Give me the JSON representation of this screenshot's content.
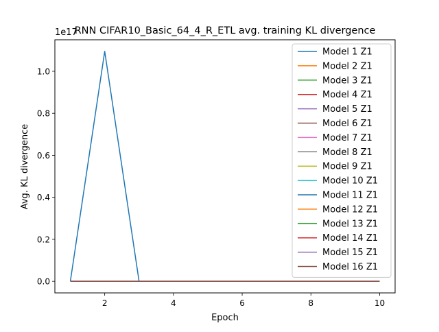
{
  "chart_data": {
    "type": "line",
    "title": "RNN CIFAR10_Basic_64_4_R_ETL avg. training KL divergence",
    "xlabel": "Epoch",
    "ylabel": "Avg. KL divergence",
    "y_offset_label": "1e17",
    "xlim": [
      0.55,
      10.45
    ],
    "ylim": [
      -0.055,
      1.15
    ],
    "y_scale_exponent": 17,
    "x_ticks": [
      2,
      4,
      6,
      8,
      10
    ],
    "x_tick_labels": [
      "2",
      "4",
      "6",
      "8",
      "10"
    ],
    "y_ticks": [
      0.0,
      0.2,
      0.4,
      0.6,
      0.8,
      1.0
    ],
    "y_tick_labels": [
      "0.0",
      "0.2",
      "0.4",
      "0.6",
      "0.8",
      "1.0"
    ],
    "grid": false,
    "legend_position": "top-right",
    "x": [
      1,
      2,
      3,
      4,
      5,
      6,
      7,
      8,
      9,
      10
    ],
    "series": [
      {
        "name": "Model 1 Z1",
        "color": "#1f77b4",
        "values": [
          0,
          1.095,
          0,
          0,
          0,
          0,
          0,
          0,
          0,
          0
        ]
      },
      {
        "name": "Model 2 Z1",
        "color": "#ff7f0e",
        "values": [
          0,
          0,
          0,
          0,
          0,
          0,
          0,
          0,
          0,
          0
        ]
      },
      {
        "name": "Model 3 Z1",
        "color": "#2ca02c",
        "values": [
          0,
          0,
          0,
          0,
          0,
          0,
          0,
          0,
          0,
          0
        ]
      },
      {
        "name": "Model 4 Z1",
        "color": "#d62728",
        "values": [
          0,
          0,
          0,
          0,
          0,
          0,
          0,
          0,
          0,
          0
        ]
      },
      {
        "name": "Model 5 Z1",
        "color": "#9467bd",
        "values": [
          0,
          0,
          0,
          0,
          0,
          0,
          0,
          0,
          0,
          0
        ]
      },
      {
        "name": "Model 6 Z1",
        "color": "#8c564b",
        "values": [
          0,
          0,
          0,
          0,
          0,
          0,
          0,
          0,
          0,
          0
        ]
      },
      {
        "name": "Model 7 Z1",
        "color": "#e377c2",
        "values": [
          0,
          0,
          0,
          0,
          0,
          0,
          0,
          0,
          0,
          0
        ]
      },
      {
        "name": "Model 8 Z1",
        "color": "#7f7f7f",
        "values": [
          0,
          0,
          0,
          0,
          0,
          0,
          0,
          0,
          0,
          0
        ]
      },
      {
        "name": "Model 9 Z1",
        "color": "#bcbd22",
        "values": [
          0,
          0,
          0,
          0,
          0,
          0,
          0,
          0,
          0,
          0
        ]
      },
      {
        "name": "Model 10 Z1",
        "color": "#17becf",
        "values": [
          0,
          0,
          0,
          0,
          0,
          0,
          0,
          0,
          0,
          0
        ]
      },
      {
        "name": "Model 11 Z1",
        "color": "#1f77b4",
        "values": [
          0,
          0,
          0,
          0,
          0,
          0,
          0,
          0,
          0,
          0
        ]
      },
      {
        "name": "Model 12 Z1",
        "color": "#ff7f0e",
        "values": [
          0,
          0,
          0,
          0,
          0,
          0,
          0,
          0,
          0,
          0
        ]
      },
      {
        "name": "Model 13 Z1",
        "color": "#2ca02c",
        "values": [
          0,
          0,
          0,
          0,
          0,
          0,
          0,
          0,
          0,
          0
        ]
      },
      {
        "name": "Model 14 Z1",
        "color": "#d62728",
        "values": [
          0,
          0,
          0,
          0,
          0,
          0,
          0,
          0,
          0,
          0
        ]
      },
      {
        "name": "Model 15 Z1",
        "color": "#9467bd",
        "values": [
          0,
          0,
          0,
          0,
          0,
          0,
          0,
          0,
          0,
          0
        ]
      },
      {
        "name": "Model 16 Z1",
        "color": "#8c564b",
        "values": [
          0,
          0,
          0,
          0,
          0,
          0,
          0,
          0,
          0,
          0
        ]
      }
    ]
  }
}
